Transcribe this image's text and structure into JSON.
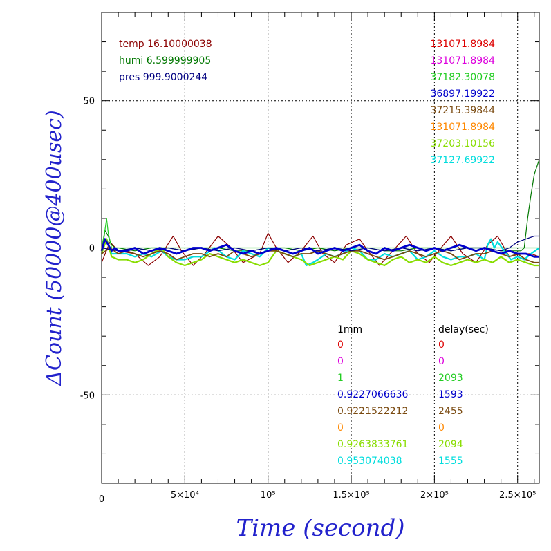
{
  "chart_data": {
    "type": "line",
    "xlabel": "Time (second)",
    "ylabel": "ΔCount (50000@400usec)",
    "xlim": [
      0,
      263000
    ],
    "ylim": [
      -80,
      80
    ],
    "x_ticks": [
      {
        "value": 0,
        "label": "0"
      },
      {
        "value": 50000,
        "label": "5×10⁴"
      },
      {
        "value": 100000,
        "label": "10⁵"
      },
      {
        "value": 150000,
        "label": "1.5×10⁵"
      },
      {
        "value": 200000,
        "label": "2×10⁵"
      },
      {
        "value": 250000,
        "label": "2.5×10⁵"
      }
    ],
    "y_ticks": [
      {
        "value": -50,
        "label": "-50"
      },
      {
        "value": 0,
        "label": "0"
      },
      {
        "value": 50,
        "label": "50"
      }
    ],
    "grid": true,
    "env_readings": [
      {
        "text": "temp 16.10000038",
        "color": "#8b0000"
      },
      {
        "text": "humi 6.599999905",
        "color": "#007700"
      },
      {
        "text": "pres 999.9000244",
        "color": "#000080"
      }
    ],
    "right_values": [
      {
        "text": "131071.8984",
        "color": "#dd0000"
      },
      {
        "text": "131071.8984",
        "color": "#dd00dd"
      },
      {
        "text": "37182.30078",
        "color": "#22cc22"
      },
      {
        "text": "36897.19922",
        "color": "#0000cc"
      },
      {
        "text": "37215.39844",
        "color": "#7a4a10"
      },
      {
        "text": "131071.8984",
        "color": "#ff8800"
      },
      {
        "text": "37203.10156",
        "color": "#88dd00"
      },
      {
        "text": "37127.69922",
        "color": "#00dddd"
      }
    ],
    "table_headers": {
      "col1": "1mm",
      "col2": "delay(sec)"
    },
    "table_rows": [
      {
        "c1": "0",
        "c2": "0",
        "color": "#dd0000"
      },
      {
        "c1": "0",
        "c2": "0",
        "color": "#dd00dd"
      },
      {
        "c1": "1",
        "c2": "2093",
        "color": "#22cc22"
      },
      {
        "c1": "0.9227066636",
        "c2": "1593",
        "color": "#0000cc"
      },
      {
        "c1": "0.9221522212",
        "c2": "2455",
        "color": "#7a4a10"
      },
      {
        "c1": "0",
        "c2": "0",
        "color": "#ff8800"
      },
      {
        "c1": "0.9263833761",
        "c2": "2094",
        "color": "#88dd00"
      },
      {
        "c1": "0.953074038",
        "c2": "1555",
        "color": "#00dddd"
      }
    ],
    "series": [
      {
        "color": "#8b0000",
        "width": 1.2,
        "x": [
          0,
          5000,
          10000,
          20000,
          28000,
          35000,
          43000,
          48000,
          55000,
          62000,
          70000,
          78000,
          85000,
          95000,
          100000,
          105000,
          112000,
          120000,
          127000,
          133000,
          140000,
          147000,
          155000,
          160000,
          167000,
          175000,
          183000,
          190000,
          197000,
          204000,
          210000,
          217000,
          225000,
          232000,
          238000,
          245000,
          252000,
          258000,
          263000
        ],
        "y": [
          -5,
          2,
          -1,
          -2,
          -6,
          -3,
          4,
          -1,
          -6,
          -2,
          4,
          0,
          -5,
          -2,
          5,
          0,
          -5,
          -1,
          4,
          -2,
          -5,
          1,
          3,
          -1,
          -6,
          -1,
          4,
          -2,
          -5,
          0,
          4,
          -2,
          -5,
          1,
          4,
          -3,
          -2,
          -2,
          -3
        ]
      },
      {
        "color": "#007700",
        "width": 1.2,
        "x": [
          0,
          2000,
          4000,
          6000,
          8000,
          10000,
          20000,
          30000,
          40000,
          50000,
          60000,
          70000,
          80000,
          90000,
          100000,
          110000,
          120000,
          130000,
          140000,
          150000,
          160000,
          170000,
          180000,
          190000,
          200000,
          210000,
          220000,
          230000,
          240000,
          248000,
          252000,
          254000,
          256000,
          258000,
          260000,
          263000
        ],
        "y": [
          -3,
          6,
          4,
          1,
          0,
          0,
          -1,
          0,
          0,
          -1,
          0,
          0,
          -1,
          -1,
          0,
          0,
          -1,
          0,
          -1,
          0,
          0,
          -1,
          -1,
          0,
          0,
          -1,
          0,
          0,
          -1,
          -1,
          -1,
          0,
          10,
          18,
          25,
          30
        ]
      },
      {
        "color": "#22cc22",
        "width": 1.2,
        "x": [
          0,
          2000,
          3000,
          4000,
          6000,
          10000,
          30000,
          60000,
          100000,
          150000,
          200000,
          263000
        ],
        "y": [
          0,
          6,
          10,
          5,
          0,
          0,
          0,
          0,
          0,
          0,
          0,
          0
        ]
      },
      {
        "color": "#00dddd",
        "width": 2.2,
        "x": [
          0,
          3000,
          6000,
          10000,
          15000,
          20000,
          25000,
          30000,
          36000,
          40000,
          45000,
          50000,
          55000,
          60000,
          68000,
          75000,
          80000,
          85000,
          90000,
          95000,
          100000,
          105000,
          110000,
          115000,
          120000,
          123000,
          127000,
          130000,
          135000,
          140000,
          145000,
          150000,
          155000,
          160000,
          165000,
          170000,
          175000,
          180000,
          185000,
          190000,
          195000,
          200000,
          205000,
          210000,
          215000,
          220000,
          225000,
          230000,
          232000,
          234000,
          236000,
          238000,
          242000,
          246000,
          250000,
          254000,
          258000,
          263000
        ],
        "y": [
          -1,
          3,
          -2,
          -2,
          -2,
          -3,
          -2,
          -3,
          -1,
          -3,
          -4,
          -4,
          -3,
          -3,
          0,
          -3,
          -4,
          -1,
          -2,
          -3,
          0,
          -1,
          -2,
          -3,
          -2,
          -6,
          -5,
          -4,
          -2,
          -3,
          -2,
          0,
          -1,
          -4,
          -4,
          -2,
          -3,
          -2,
          -1,
          -4,
          -3,
          -1,
          -3,
          -4,
          -3,
          -3,
          -2,
          -4,
          1,
          3,
          0,
          2,
          -1,
          -4,
          -3,
          -4,
          -2,
          0
        ]
      },
      {
        "color": "#88dd00",
        "width": 2.2,
        "x": [
          0,
          3000,
          6000,
          10000,
          15000,
          20000,
          25000,
          30000,
          36000,
          40000,
          45000,
          50000,
          55000,
          60000,
          65000,
          70000,
          75000,
          80000,
          85000,
          90000,
          95000,
          100000,
          105000,
          110000,
          115000,
          120000,
          125000,
          130000,
          135000,
          140000,
          145000,
          150000,
          155000,
          160000,
          165000,
          170000,
          175000,
          180000,
          185000,
          190000,
          195000,
          200000,
          205000,
          210000,
          215000,
          220000,
          225000,
          230000,
          235000,
          240000,
          245000,
          250000,
          255000,
          260000,
          263000
        ],
        "y": [
          -2,
          3,
          -3,
          -4,
          -4,
          -5,
          -4,
          -2,
          0,
          -3,
          -5,
          -6,
          -5,
          -4,
          -2,
          -3,
          -4,
          -5,
          -4,
          -5,
          -6,
          -5,
          -1,
          -2,
          -3,
          -4,
          -6,
          -5,
          -4,
          -3,
          -4,
          -1,
          -2,
          -4,
          -5,
          -6,
          -4,
          -3,
          -5,
          -4,
          -5,
          -3,
          -5,
          -6,
          -5,
          -4,
          -5,
          -4,
          -5,
          -3,
          -5,
          -4,
          -5,
          -6,
          -6
        ]
      },
      {
        "color": "#7a4a10",
        "width": 1.8,
        "x": [
          0,
          5000,
          10000,
          15000,
          20000,
          25000,
          30000,
          35000,
          40000,
          45000,
          50000,
          55000,
          60000,
          65000,
          70000,
          75000,
          80000,
          85000,
          90000,
          95000,
          100000,
          105000,
          110000,
          115000,
          120000,
          125000,
          130000,
          135000,
          140000,
          145000,
          150000,
          155000,
          160000,
          165000,
          170000,
          175000,
          180000,
          185000,
          190000,
          195000,
          200000,
          205000,
          210000,
          215000,
          220000,
          225000,
          230000,
          235000,
          240000,
          245000,
          250000,
          255000,
          260000,
          263000
        ],
        "y": [
          -2,
          0,
          -2,
          -1,
          -2,
          -3,
          -2,
          -1,
          -2,
          -4,
          -3,
          -2,
          -2,
          -3,
          -2,
          -3,
          -1,
          -2,
          -3,
          -2,
          -1,
          -1,
          -2,
          -3,
          -2,
          -2,
          -1,
          -2,
          -3,
          -2,
          -1,
          -1,
          -2,
          -3,
          -4,
          -3,
          -2,
          -1,
          -2,
          -3,
          -2,
          -1,
          -2,
          -4,
          -3,
          -2,
          -2,
          -1,
          -2,
          -3,
          -2,
          -4,
          -5,
          -5
        ]
      },
      {
        "color": "#000080",
        "width": 1.2,
        "x": [
          0,
          10000,
          20000,
          30000,
          40000,
          50000,
          60000,
          70000,
          80000,
          90000,
          100000,
          110000,
          120000,
          130000,
          140000,
          150000,
          160000,
          170000,
          180000,
          190000,
          200000,
          210000,
          220000,
          230000,
          240000,
          245000,
          250000,
          255000,
          260000,
          263000
        ],
        "y": [
          0,
          -1,
          0,
          -1,
          0,
          -1,
          0,
          -1,
          0,
          -1,
          0,
          -1,
          0,
          -1,
          0,
          -1,
          0,
          -1,
          0,
          -1,
          0,
          -1,
          0,
          0,
          -1,
          0,
          2,
          3,
          4,
          4
        ]
      },
      {
        "color": "#0000cc",
        "width": 2.8,
        "x": [
          0,
          2000,
          4000,
          6000,
          8000,
          10000,
          15000,
          20000,
          25000,
          30000,
          35000,
          40000,
          45000,
          50000,
          55000,
          60000,
          65000,
          70000,
          75000,
          80000,
          85000,
          90000,
          95000,
          100000,
          105000,
          110000,
          115000,
          120000,
          125000,
          130000,
          135000,
          140000,
          145000,
          150000,
          155000,
          160000,
          165000,
          170000,
          175000,
          180000,
          185000,
          190000,
          195000,
          200000,
          205000,
          210000,
          215000,
          220000,
          225000,
          230000,
          235000,
          240000,
          245000,
          250000,
          255000,
          260000,
          263000
        ],
        "y": [
          -1,
          3,
          1,
          -1,
          0,
          -1,
          -1,
          0,
          -2,
          -1,
          0,
          -1,
          -2,
          -1,
          0,
          0,
          -1,
          0,
          1,
          -1,
          -2,
          -1,
          -2,
          -1,
          0,
          -1,
          -2,
          -1,
          0,
          -2,
          -1,
          0,
          -1,
          0,
          1,
          -1,
          -2,
          0,
          -1,
          0,
          1,
          0,
          -1,
          0,
          -1,
          0,
          1,
          0,
          -1,
          0,
          -1,
          -2,
          -1,
          -2,
          -2,
          -3,
          -3
        ]
      }
    ]
  }
}
